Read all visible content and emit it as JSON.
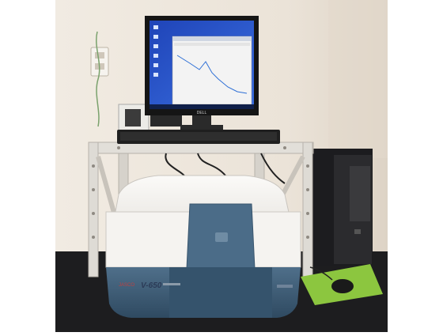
{
  "instrument": {
    "model_label": "V-650",
    "brand_label": "JASCO"
  },
  "monitor": {
    "brand_label": "DELL"
  },
  "colors": {
    "wall": "#efe7dc",
    "wall_shadow": "#d9cfc2",
    "counter": "#1d1d1f",
    "shelf": "#dedbd5",
    "instrument_body": "#f4f2ef",
    "instrument_base": "#3d5c76",
    "sample_lid": "#4b6c88",
    "desktop_screen": "#2a56c9",
    "tower": "#1c1c1f",
    "mousepad": "#8cc63f"
  }
}
